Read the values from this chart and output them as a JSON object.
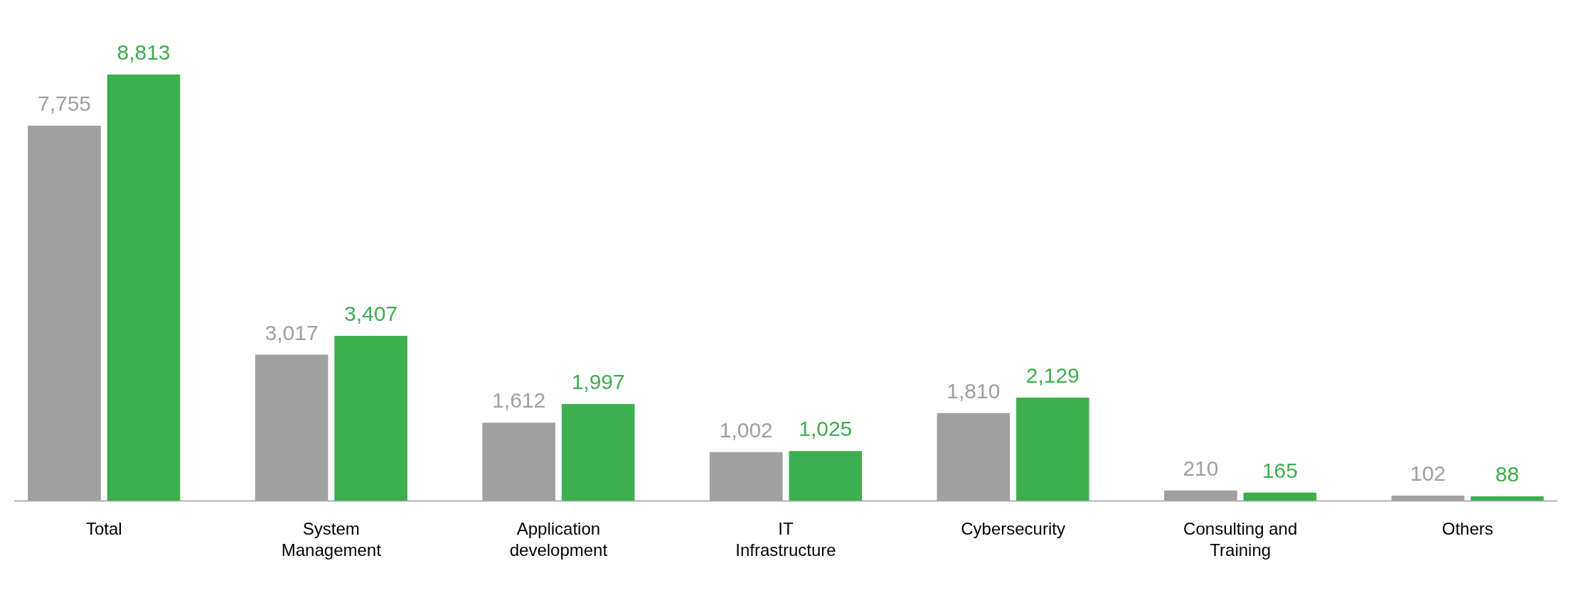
{
  "chart_data": {
    "type": "bar",
    "categories": [
      "Total",
      "System\nManagement",
      "Application\ndevelopment",
      "IT\nInfrastructure",
      "Cybersecurity",
      "Consulting and\nTraining",
      "Others"
    ],
    "series": [
      {
        "color": "#a0a0a0",
        "values": [
          7755,
          3017,
          1612,
          1002,
          1810,
          210,
          102
        ],
        "value_labels": [
          "7,755",
          "3,017",
          "1,612",
          "1,002",
          "1,810",
          "210",
          "102"
        ]
      },
      {
        "color": "#3daf4e",
        "values": [
          8813,
          3407,
          1997,
          1025,
          2129,
          165,
          88
        ],
        "value_labels": [
          "8,813",
          "3,407",
          "1,997",
          "1,025",
          "2,129",
          "165",
          "88"
        ]
      }
    ],
    "grid": false,
    "legend": false
  }
}
